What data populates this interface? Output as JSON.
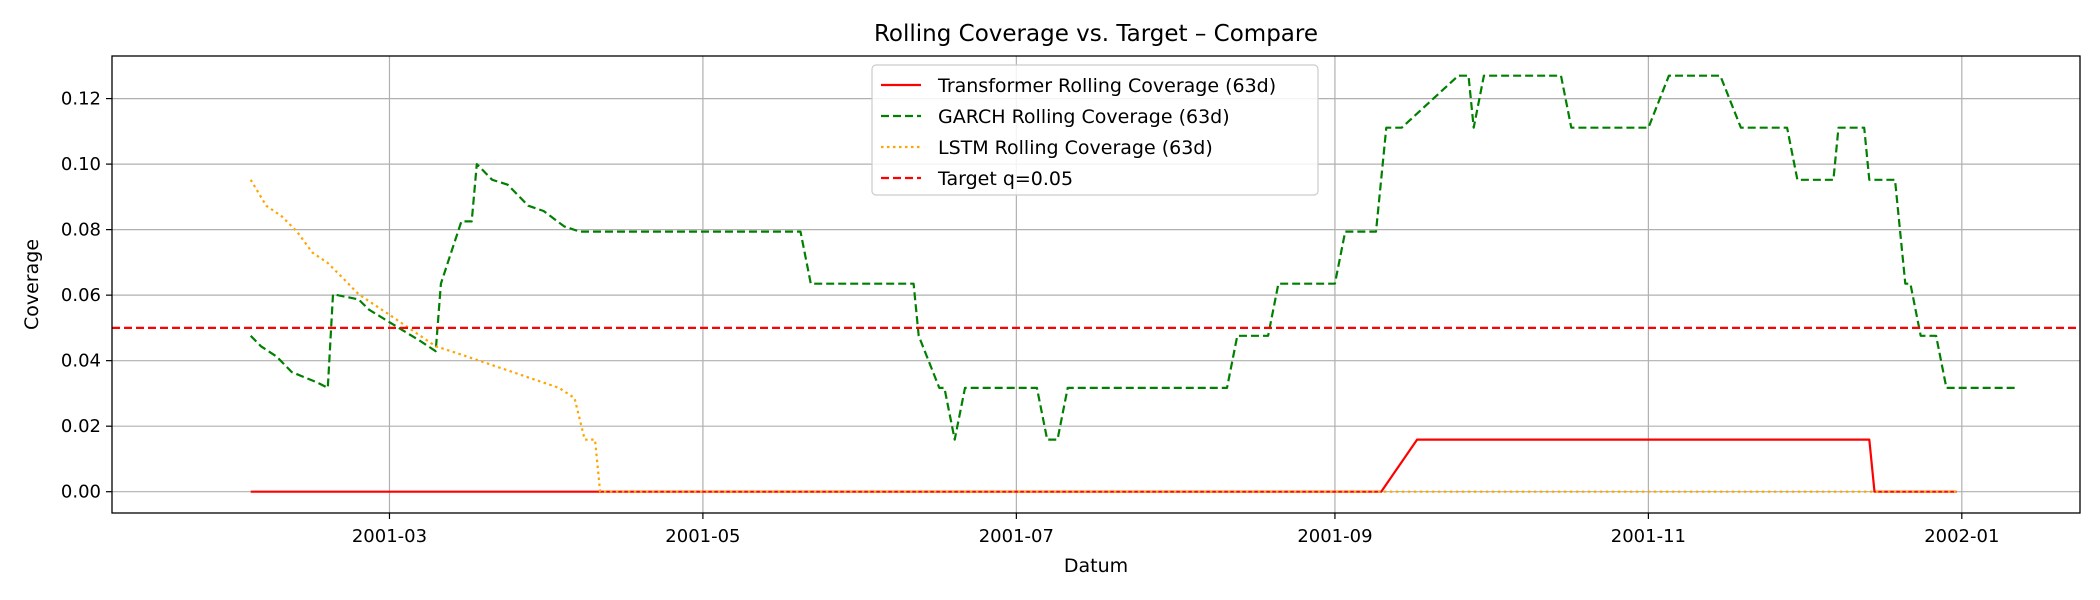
{
  "chart_data": {
    "type": "line",
    "title": "Rolling Coverage vs. Target – Compare",
    "xlabel": "Datum",
    "ylabel": "Coverage",
    "xlim": [
      "2001-01-06",
      "2002-01-24"
    ],
    "ylim": [
      -0.0065,
      0.133
    ],
    "grid": true,
    "legend_position": "upper center",
    "x_ticks": [
      "2001-03",
      "2001-05",
      "2001-07",
      "2001-09",
      "2001-11",
      "2002-01"
    ],
    "y_ticks": [
      0.0,
      0.02,
      0.04,
      0.06,
      0.08,
      0.1,
      0.12
    ],
    "y_tick_labels": [
      "0.00",
      "0.02",
      "0.04",
      "0.06",
      "0.08",
      "0.10",
      "0.12"
    ],
    "series": [
      {
        "name": "Transformer Rolling Coverage (63d)",
        "color": "#ff0000",
        "style": "solid",
        "points": [
          [
            "2001-02-02",
            0.0
          ],
          [
            "2001-09-10",
            0.0
          ],
          [
            "2001-09-17",
            0.0159
          ],
          [
            "2001-12-14",
            0.0159
          ],
          [
            "2001-12-15",
            0.0
          ],
          [
            "2001-12-31",
            0.0
          ]
        ]
      },
      {
        "name": "GARCH Rolling Coverage (63d)",
        "color": "#008000",
        "style": "dashed",
        "points": [
          [
            "2001-02-02",
            0.0476
          ],
          [
            "2001-02-04",
            0.0444
          ],
          [
            "2001-02-07",
            0.0413
          ],
          [
            "2001-02-10",
            0.0365
          ],
          [
            "2001-02-15",
            0.0333
          ],
          [
            "2001-02-17",
            0.0317
          ],
          [
            "2001-02-18",
            0.0603
          ],
          [
            "2001-02-23",
            0.0587
          ],
          [
            "2001-02-25",
            0.0556
          ],
          [
            "2001-03-02",
            0.0508
          ],
          [
            "2001-03-07",
            0.046
          ],
          [
            "2001-03-10",
            0.0429
          ],
          [
            "2001-03-11",
            0.0635
          ],
          [
            "2001-03-13",
            0.073
          ],
          [
            "2001-03-15",
            0.0825
          ],
          [
            "2001-03-17",
            0.0825
          ],
          [
            "2001-03-18",
            0.1
          ],
          [
            "2001-03-21",
            0.0952
          ],
          [
            "2001-03-24",
            0.0937
          ],
          [
            "2001-03-28",
            0.0873
          ],
          [
            "2001-03-31",
            0.0857
          ],
          [
            "2001-04-04",
            0.081
          ],
          [
            "2001-04-07",
            0.0794
          ],
          [
            "2001-05-20",
            0.0794
          ],
          [
            "2001-05-22",
            0.0635
          ],
          [
            "2001-06-11",
            0.0635
          ],
          [
            "2001-06-12",
            0.0476
          ],
          [
            "2001-06-16",
            0.0317
          ],
          [
            "2001-06-17",
            0.0317
          ],
          [
            "2001-06-19",
            0.0159
          ],
          [
            "2001-06-21",
            0.0317
          ],
          [
            "2001-07-05",
            0.0317
          ],
          [
            "2001-07-07",
            0.0159
          ],
          [
            "2001-07-09",
            0.0159
          ],
          [
            "2001-07-11",
            0.0317
          ],
          [
            "2001-08-11",
            0.0317
          ],
          [
            "2001-08-13",
            0.0476
          ],
          [
            "2001-08-19",
            0.0476
          ],
          [
            "2001-08-21",
            0.0635
          ],
          [
            "2001-09-01",
            0.0635
          ],
          [
            "2001-09-03",
            0.0794
          ],
          [
            "2001-09-09",
            0.0794
          ],
          [
            "2001-09-11",
            0.1111
          ],
          [
            "2001-09-14",
            0.1111
          ],
          [
            "2001-09-25",
            0.127
          ],
          [
            "2001-09-27",
            0.127
          ],
          [
            "2001-09-28",
            0.1111
          ],
          [
            "2001-09-30",
            0.127
          ],
          [
            "2001-10-15",
            0.127
          ],
          [
            "2001-10-17",
            0.1111
          ],
          [
            "2001-11-01",
            0.1111
          ],
          [
            "2001-11-05",
            0.127
          ],
          [
            "2001-11-15",
            0.127
          ],
          [
            "2001-11-19",
            0.1111
          ],
          [
            "2001-11-28",
            0.1111
          ],
          [
            "2001-11-30",
            0.0952
          ],
          [
            "2001-12-07",
            0.0952
          ],
          [
            "2001-12-08",
            0.1111
          ],
          [
            "2001-12-13",
            0.1111
          ],
          [
            "2001-12-14",
            0.0952
          ],
          [
            "2001-12-19",
            0.0952
          ],
          [
            "2001-12-21",
            0.0635
          ],
          [
            "2001-12-22",
            0.0635
          ],
          [
            "2001-12-24",
            0.0476
          ],
          [
            "2001-12-27",
            0.0476
          ],
          [
            "2001-12-29",
            0.0317
          ],
          [
            "2002-01-12",
            0.0317
          ]
        ]
      },
      {
        "name": "LSTM Rolling Coverage (63d)",
        "color": "#ffa500",
        "style": "dotted",
        "points": [
          [
            "2001-02-02",
            0.0952
          ],
          [
            "2001-02-05",
            0.0873
          ],
          [
            "2001-02-08",
            0.0841
          ],
          [
            "2001-02-11",
            0.0794
          ],
          [
            "2001-02-14",
            0.073
          ],
          [
            "2001-02-17",
            0.0698
          ],
          [
            "2001-02-20",
            0.0651
          ],
          [
            "2001-02-23",
            0.0603
          ],
          [
            "2001-02-26",
            0.0571
          ],
          [
            "2001-03-01",
            0.054
          ],
          [
            "2001-03-04",
            0.0508
          ],
          [
            "2001-03-07",
            0.0476
          ],
          [
            "2001-03-10",
            0.0444
          ],
          [
            "2001-03-13",
            0.0429
          ],
          [
            "2001-03-16",
            0.0413
          ],
          [
            "2001-03-19",
            0.0397
          ],
          [
            "2001-03-22",
            0.0381
          ],
          [
            "2001-03-25",
            0.0365
          ],
          [
            "2001-03-28",
            0.0349
          ],
          [
            "2001-03-31",
            0.0333
          ],
          [
            "2001-04-03",
            0.0317
          ],
          [
            "2001-04-06",
            0.0286
          ],
          [
            "2001-04-08",
            0.0159
          ],
          [
            "2001-04-10",
            0.0159
          ],
          [
            "2001-04-11",
            0.0
          ],
          [
            "2001-12-31",
            0.0
          ]
        ]
      },
      {
        "name": "Target q=0.05",
        "color": "#ff0000",
        "style": "dashed",
        "y_constant": 0.05
      }
    ]
  }
}
